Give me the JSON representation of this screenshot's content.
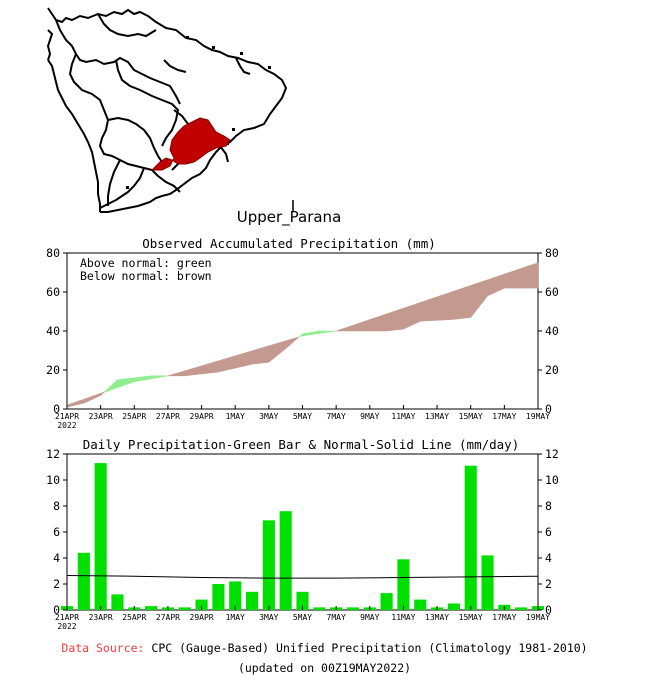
{
  "region": "Upper_Parana",
  "colors": {
    "below_fill": "#c49a90",
    "above_fill": "#90ee90",
    "bar": "#00e000",
    "line": "#000000",
    "region": "#c00000",
    "source_label": "#ff3b3b"
  },
  "chart_data": [
    {
      "type": "area",
      "title": "Observed Accumulated Precipitation (mm)",
      "legend": [
        "Above normal: green",
        "Below normal: brown"
      ],
      "legend_position": "top-left",
      "ylim": [
        0,
        80
      ],
      "yticks": [
        "0",
        "20",
        "40",
        "60",
        "80"
      ],
      "xlim": [
        0,
        28
      ],
      "xticks": [
        "21APR",
        "23APR",
        "25APR",
        "27APR",
        "29APR",
        "1MAY",
        "3MAY",
        "5MAY",
        "7MAY",
        "9MAY",
        "11MAY",
        "13MAY",
        "15MAY",
        "17MAY",
        "19MAY"
      ],
      "xtick_year": "2022",
      "observed": [
        {
          "x": 0,
          "y": 1
        },
        {
          "x": 1,
          "y": 3
        },
        {
          "x": 2,
          "y": 7
        },
        {
          "x": 3,
          "y": 15
        },
        {
          "x": 5,
          "y": 17
        },
        {
          "x": 7,
          "y": 17
        },
        {
          "x": 9,
          "y": 19
        },
        {
          "x": 11,
          "y": 23
        },
        {
          "x": 12,
          "y": 24
        },
        {
          "x": 13,
          "y": 31
        },
        {
          "x": 14,
          "y": 38.5
        },
        {
          "x": 15,
          "y": 40
        },
        {
          "x": 17,
          "y": 40
        },
        {
          "x": 19,
          "y": 40
        },
        {
          "x": 20,
          "y": 41
        },
        {
          "x": 21,
          "y": 45
        },
        {
          "x": 23,
          "y": 46
        },
        {
          "x": 24,
          "y": 47
        },
        {
          "x": 25,
          "y": 58
        },
        {
          "x": 26,
          "y": 62
        },
        {
          "x": 28,
          "y": 62
        }
      ],
      "normal": [
        {
          "x": 0,
          "y": 2
        },
        {
          "x": 4,
          "y": 14
        },
        {
          "x": 6,
          "y": 17
        },
        {
          "x": 14,
          "y": 37.5
        },
        {
          "x": 16,
          "y": 40
        },
        {
          "x": 28,
          "y": 75
        }
      ]
    },
    {
      "type": "bar",
      "title": "Daily Precipitation-Green Bar & Normal-Solid Line (mm/day)",
      "ylim": [
        0,
        12
      ],
      "yticks": [
        "0",
        "2",
        "4",
        "6",
        "8",
        "10",
        "12"
      ],
      "xlim": [
        0,
        28
      ],
      "xticks": [
        "21APR",
        "23APR",
        "25APR",
        "27APR",
        "29APR",
        "1MAY",
        "3MAY",
        "5MAY",
        "7MAY",
        "9MAY",
        "11MAY",
        "13MAY",
        "15MAY",
        "17MAY",
        "19MAY"
      ],
      "xtick_year": "2022",
      "values": [
        0.3,
        4.4,
        11.3,
        1.2,
        0.2,
        0.3,
        0.2,
        0.2,
        0.8,
        2.0,
        2.2,
        1.4,
        6.9,
        7.6,
        1.4,
        0.2,
        0.2,
        0.2,
        0.2,
        1.3,
        3.9,
        0.8,
        0.2,
        0.5,
        11.1,
        4.2,
        0.4,
        0.2,
        0.3
      ],
      "normal": [
        {
          "x": 0,
          "y": 2.65
        },
        {
          "x": 4,
          "y": 2.6
        },
        {
          "x": 8,
          "y": 2.5
        },
        {
          "x": 12,
          "y": 2.45
        },
        {
          "x": 16,
          "y": 2.45
        },
        {
          "x": 20,
          "y": 2.5
        },
        {
          "x": 24,
          "y": 2.55
        },
        {
          "x": 28,
          "y": 2.6
        }
      ]
    }
  ],
  "footer": {
    "source_label": "Data Source:",
    "source_text": " CPC (Gauge-Based) Unified Precipitation (Climatology 1981-2010)",
    "updated": "(updated on 00Z19MAY2022)"
  }
}
